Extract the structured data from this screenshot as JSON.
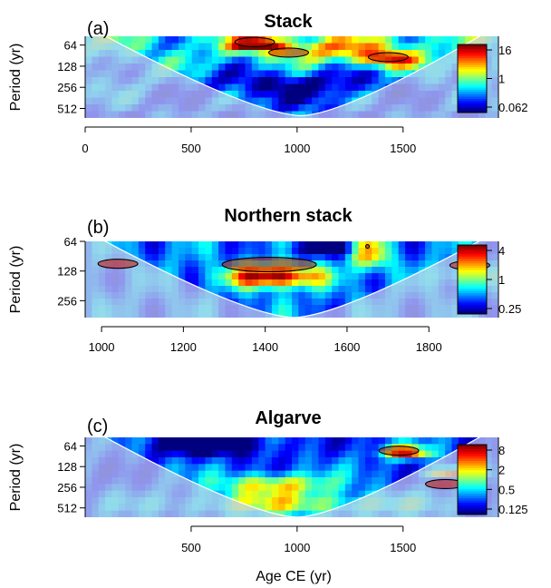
{
  "figure": {
    "xlabel": "Age CE (yr)",
    "ylabel": "Period (yr)"
  },
  "colors": {
    "scale": [
      "#00007f",
      "#0000ff",
      "#007fff",
      "#00ffff",
      "#7fff7f",
      "#ffff00",
      "#ff7f00",
      "#ff0000",
      "#7f0000"
    ],
    "cone_mask": "#c8cde6",
    "cone_edge": "#ffffff",
    "contour": "#000000"
  },
  "chart_data": [
    {
      "type": "heatmap",
      "panel_label": "(a)",
      "title": "Stack",
      "xlabel": "",
      "ylabel": "Period (yr)",
      "xlim": [
        0,
        1950
      ],
      "x_ticks": [
        "0",
        "500",
        "1000",
        "1500"
      ],
      "x_tick_values": [
        0,
        500,
        1000,
        1500
      ],
      "y_scale": "log2",
      "ylim": [
        48,
        700
      ],
      "y_ticks": [
        "64",
        "128",
        "256",
        "512"
      ],
      "y_tick_values": [
        64,
        128,
        256,
        512
      ],
      "colorbar_ticks": [
        "16",
        "1",
        "0.062"
      ],
      "colorbar_tick_values": [
        16,
        1,
        0.062
      ],
      "cone_of_influence": {
        "center": 1020,
        "valley_period": 650
      },
      "significant_regions": [
        {
          "x": 800,
          "period": 58
        },
        {
          "x": 960,
          "period": 82
        },
        {
          "x": 1430,
          "period": 95
        }
      ]
    },
    {
      "type": "heatmap",
      "panel_label": "(b)",
      "title": "Northern stack",
      "xlabel": "",
      "ylabel": "Period (yr)",
      "xlim": [
        960,
        1970
      ],
      "x_ticks": [
        "1000",
        "1200",
        "1400",
        "1600",
        "1800"
      ],
      "x_tick_values": [
        1000,
        1200,
        1400,
        1600,
        1800
      ],
      "y_scale": "log2",
      "ylim": [
        64,
        380
      ],
      "y_ticks": [
        "64",
        "128",
        "256"
      ],
      "y_tick_values": [
        64,
        128,
        256
      ],
      "colorbar_ticks": [
        "4",
        "1",
        "0.25"
      ],
      "colorbar_tick_values": [
        4,
        1,
        0.25
      ],
      "cone_of_influence": {
        "center": 1470,
        "valley_period": 380
      },
      "significant_regions": [
        {
          "x": 1410,
          "period": 110
        },
        {
          "x": 1650,
          "period": 72
        },
        {
          "x": 1900,
          "period": 112
        },
        {
          "x": 1040,
          "period": 108
        }
      ]
    },
    {
      "type": "heatmap",
      "panel_label": "(c)",
      "title": "Algarve",
      "xlabel": "Age CE (yr)",
      "ylabel": "Period (yr)",
      "xlim": [
        0,
        1950
      ],
      "x_ticks": [
        "500",
        "1000",
        "1500"
      ],
      "x_tick_values": [
        500,
        1000,
        1500
      ],
      "y_scale": "log2",
      "ylim": [
        48,
        700
      ],
      "y_ticks": [
        "64",
        "128",
        "256",
        "512"
      ],
      "y_tick_values": [
        64,
        128,
        256,
        512
      ],
      "colorbar_ticks": [
        "8",
        "2",
        "0.5",
        "0.125"
      ],
      "colorbar_tick_values": [
        8,
        2,
        0.5,
        0.125
      ],
      "cone_of_influence": {
        "center": 1000,
        "valley_period": 700
      },
      "significant_regions": [
        {
          "x": 1480,
          "period": 75
        },
        {
          "x": 1700,
          "period": 230
        }
      ]
    }
  ]
}
